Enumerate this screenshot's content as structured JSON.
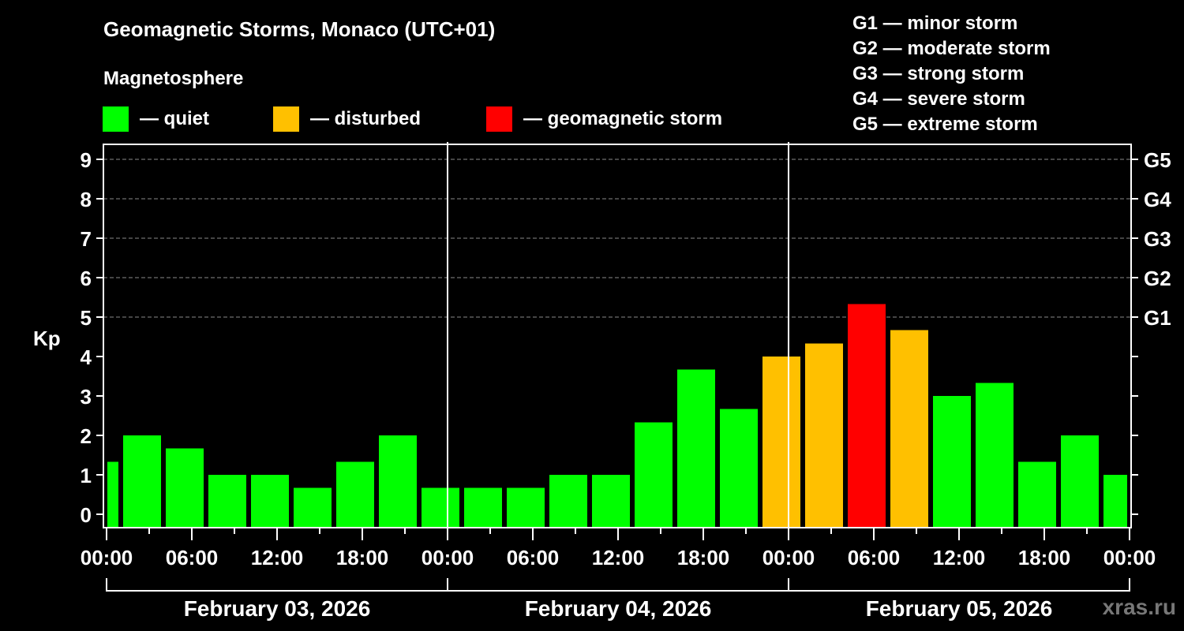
{
  "header": {
    "title": "Geomagnetic Storms, Monaco (UTC+01)",
    "subtitle": "Magnetosphere"
  },
  "legend": [
    {
      "label": "— quiet",
      "color": "#00FF00"
    },
    {
      "label": "— disturbed",
      "color": "#FFC000"
    },
    {
      "label": "— geomagnetic storm",
      "color": "#FF0000"
    }
  ],
  "storm_scale": [
    "G1 — minor storm",
    "G2 — moderate storm",
    "G3 — strong storm",
    "G4 — severe storm",
    "G5 — extreme storm"
  ],
  "watermark": "xras.ru",
  "chart_data": {
    "type": "bar",
    "title": "Geomagnetic Storms, Monaco (UTC+01)",
    "xlabel": "",
    "ylabel": "Kp",
    "ylim": [
      -0.3,
      9.4
    ],
    "yticks": [
      0,
      1,
      2,
      3,
      4,
      5,
      6,
      7,
      8,
      9
    ],
    "right_ticks": [
      {
        "value": 5,
        "label": "G1"
      },
      {
        "value": 6,
        "label": "G2"
      },
      {
        "value": 7,
        "label": "G3"
      },
      {
        "value": 8,
        "label": "G4"
      },
      {
        "value": 9,
        "label": "G5"
      }
    ],
    "grid": "dashed horizontal at Kp 5-9",
    "x_tick_labels": [
      "00:00",
      "06:00",
      "12:00",
      "18:00",
      "00:00",
      "06:00",
      "12:00",
      "18:00",
      "00:00",
      "06:00",
      "12:00",
      "18:00",
      "00:00"
    ],
    "x_tick_hours": [
      0,
      6,
      12,
      18,
      24,
      30,
      36,
      42,
      48,
      54,
      60,
      66,
      72
    ],
    "days": [
      "February 03, 2026",
      "February 04, 2026",
      "February 05, 2026"
    ],
    "total_hours": 72,
    "bars": [
      {
        "start": 0,
        "end": 1,
        "kp": 1.33,
        "level": "quiet"
      },
      {
        "start": 1,
        "end": 4,
        "kp": 2.0,
        "level": "quiet"
      },
      {
        "start": 4,
        "end": 7,
        "kp": 1.67,
        "level": "quiet"
      },
      {
        "start": 7,
        "end": 10,
        "kp": 1.0,
        "level": "quiet"
      },
      {
        "start": 10,
        "end": 13,
        "kp": 1.0,
        "level": "quiet"
      },
      {
        "start": 13,
        "end": 16,
        "kp": 0.67,
        "level": "quiet"
      },
      {
        "start": 16,
        "end": 19,
        "kp": 1.33,
        "level": "quiet"
      },
      {
        "start": 19,
        "end": 22,
        "kp": 2.0,
        "level": "quiet"
      },
      {
        "start": 22,
        "end": 25,
        "kp": 0.67,
        "level": "quiet"
      },
      {
        "start": 25,
        "end": 28,
        "kp": 0.67,
        "level": "quiet"
      },
      {
        "start": 28,
        "end": 31,
        "kp": 0.67,
        "level": "quiet"
      },
      {
        "start": 31,
        "end": 34,
        "kp": 1.0,
        "level": "quiet"
      },
      {
        "start": 34,
        "end": 37,
        "kp": 1.0,
        "level": "quiet"
      },
      {
        "start": 37,
        "end": 40,
        "kp": 2.33,
        "level": "quiet"
      },
      {
        "start": 40,
        "end": 43,
        "kp": 3.67,
        "level": "quiet"
      },
      {
        "start": 43,
        "end": 46,
        "kp": 2.67,
        "level": "quiet"
      },
      {
        "start": 46,
        "end": 49,
        "kp": 4.0,
        "level": "disturbed"
      },
      {
        "start": 49,
        "end": 52,
        "kp": 4.33,
        "level": "disturbed"
      },
      {
        "start": 52,
        "end": 55,
        "kp": 5.33,
        "level": "storm"
      },
      {
        "start": 55,
        "end": 58,
        "kp": 4.67,
        "level": "disturbed"
      },
      {
        "start": 58,
        "end": 61,
        "kp": 3.0,
        "level": "quiet"
      },
      {
        "start": 61,
        "end": 64,
        "kp": 3.33,
        "level": "quiet"
      },
      {
        "start": 64,
        "end": 67,
        "kp": 1.33,
        "level": "quiet"
      },
      {
        "start": 67,
        "end": 70,
        "kp": 2.0,
        "level": "quiet"
      },
      {
        "start": 70,
        "end": 72,
        "kp": 1.0,
        "level": "quiet"
      }
    ],
    "level_colors": {
      "quiet": "#00FF00",
      "disturbed": "#FFC000",
      "storm": "#FF0000"
    }
  }
}
